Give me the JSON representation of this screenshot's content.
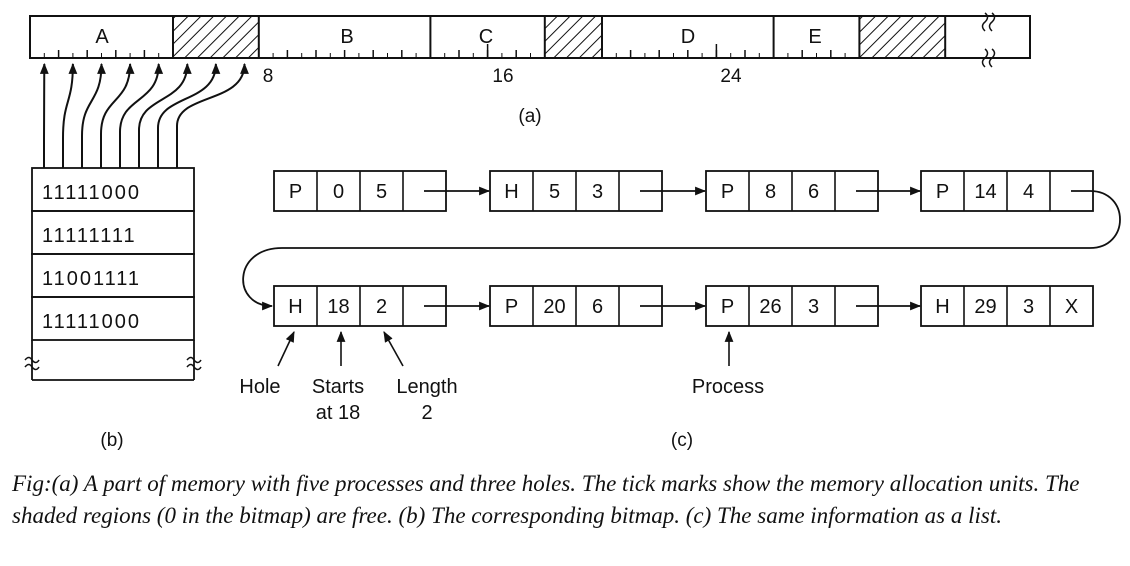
{
  "memory": {
    "segment_labels": [
      "A",
      "B",
      "C",
      "D",
      "E"
    ],
    "axis_labels": [
      "8",
      "16",
      "24"
    ],
    "sublabel": "(a)",
    "layout": [
      {
        "type": "process",
        "label": "A",
        "start": 0,
        "length": 5
      },
      {
        "type": "hole",
        "start": 5,
        "length": 3
      },
      {
        "type": "process",
        "label": "B",
        "start": 8,
        "length": 6
      },
      {
        "type": "process",
        "label": "C",
        "start": 14,
        "length": 4
      },
      {
        "type": "hole",
        "start": 18,
        "length": 2
      },
      {
        "type": "process",
        "label": "D",
        "start": 20,
        "length": 6
      },
      {
        "type": "process",
        "label": "E",
        "start": 26,
        "length": 3
      },
      {
        "type": "hole",
        "start": 29,
        "length": 3
      }
    ]
  },
  "bitmap": {
    "rows": [
      "11111000",
      "11111111",
      "11001111",
      "11111000"
    ],
    "sublabel": "(b)"
  },
  "list": {
    "nodes": [
      {
        "type": "P",
        "start": "0",
        "length": "5"
      },
      {
        "type": "H",
        "start": "5",
        "length": "3"
      },
      {
        "type": "P",
        "start": "8",
        "length": "6"
      },
      {
        "type": "P",
        "start": "14",
        "length": "4"
      },
      {
        "type": "H",
        "start": "18",
        "length": "2"
      },
      {
        "type": "P",
        "start": "20",
        "length": "6"
      },
      {
        "type": "P",
        "start": "26",
        "length": "3"
      },
      {
        "type": "H",
        "start": "29",
        "length": "3",
        "next": "X"
      }
    ],
    "annotations": {
      "hole": "Hole",
      "starts_line1": "Starts",
      "starts_line2": "at 18",
      "length_line1": "Length",
      "length_line2": "2",
      "process": "Process"
    },
    "sublabel": "(c)"
  },
  "caption": "Fig:(a) A part of memory with five processes and three holes. The tick marks show the memory allocation units. The shaded regions (0 in the bitmap) are free. (b) The corresponding bitmap. (c) The same information as a list."
}
